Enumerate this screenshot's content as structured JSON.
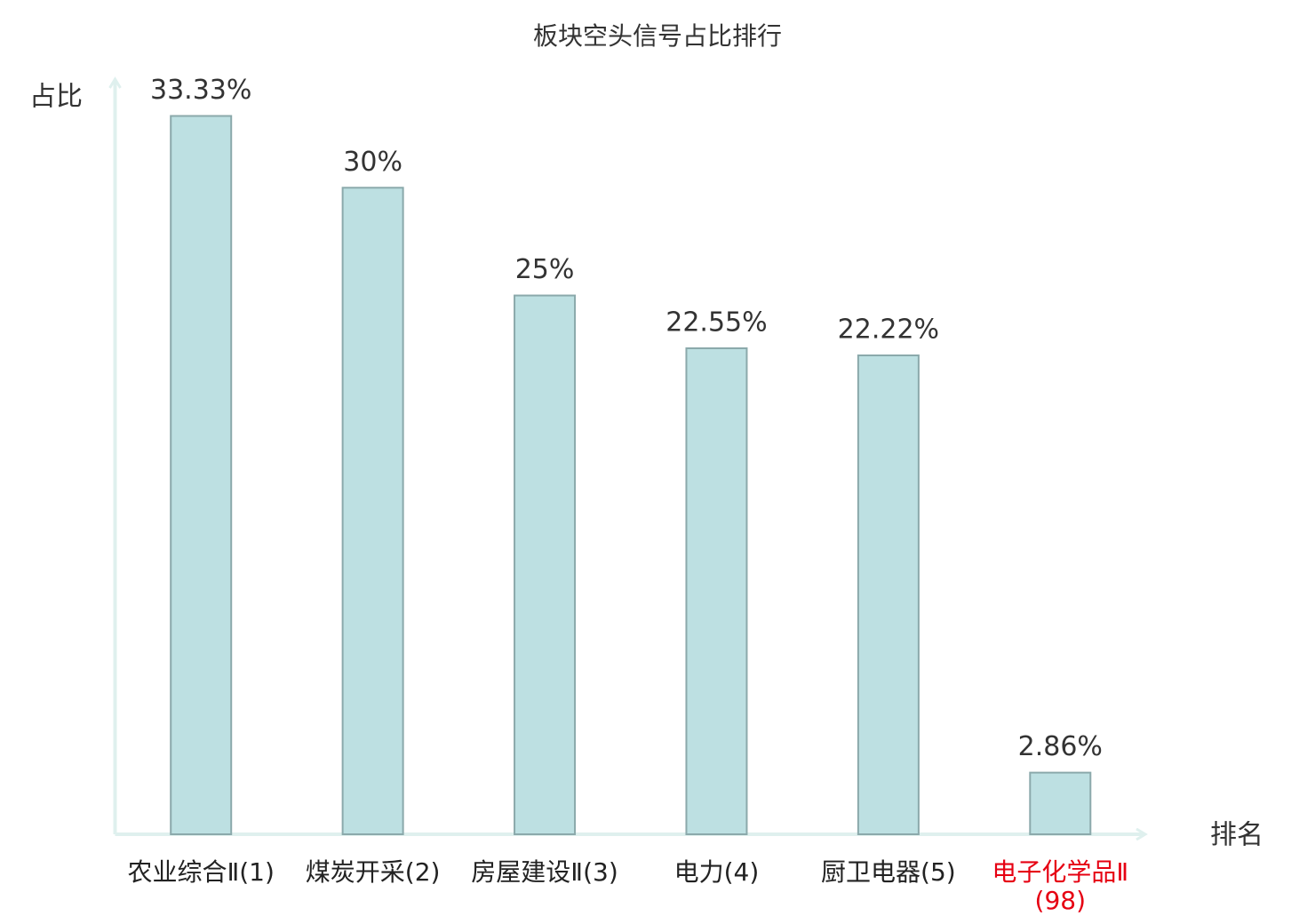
{
  "chart_data": {
    "type": "bar",
    "title": "板块空头信号占比排行",
    "y_label": "占比",
    "x_label": "排名",
    "categories": [
      "农业综合Ⅱ(1)",
      "煤炭开采(2)",
      "房屋建设Ⅱ(3)",
      "电力(4)",
      "厨卫电器(5)",
      "电子化学品Ⅱ(98)"
    ],
    "values": [
      33.33,
      30,
      25,
      22.55,
      22.22,
      2.86
    ],
    "value_labels": [
      "33.33%",
      "30%",
      "25%",
      "22.55%",
      "22.22%",
      "2.86%"
    ],
    "color": "#bde0e2",
    "edge_color": "#8ba9ab",
    "highlight_category": 5,
    "highlight_color": "#e60012",
    "ylim": [
      0,
      35
    ],
    "grid": false
  }
}
